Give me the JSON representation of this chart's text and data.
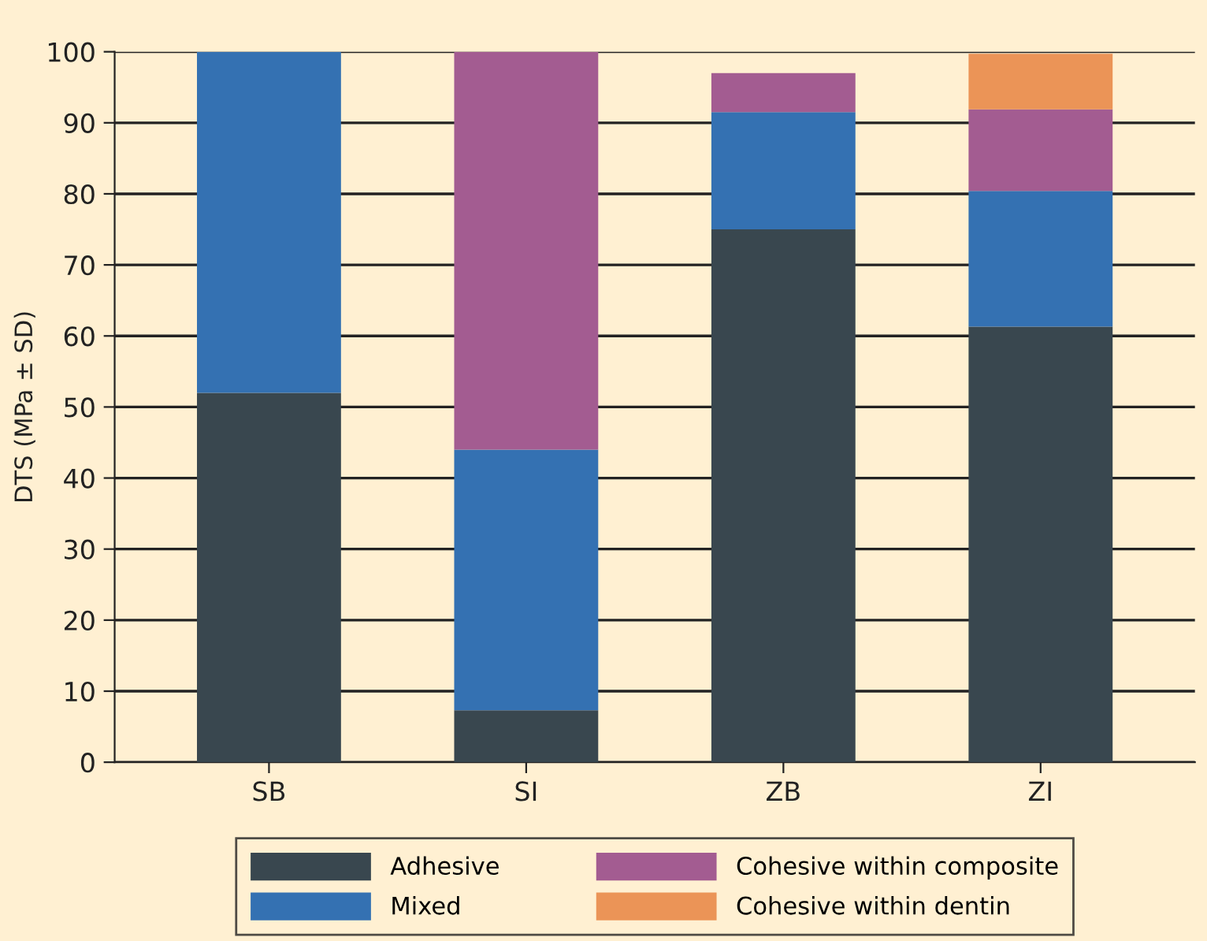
{
  "chart_data": {
    "type": "bar",
    "stacked": true,
    "ylabel": "DTS (MPa ± SD)",
    "categories": [
      "SB",
      "SI",
      "ZB",
      "ZI"
    ],
    "series": [
      {
        "name": "Adhesive",
        "color": "#39474f",
        "values": [
          52,
          7.3,
          75,
          61.3
        ]
      },
      {
        "name": "Mixed",
        "color": "#3471b2",
        "values": [
          48,
          36.7,
          16.5,
          19.1
        ]
      },
      {
        "name": "Cohesive within composite",
        "color": "#a35c91",
        "values": [
          null,
          56,
          5.5,
          11.5
        ]
      },
      {
        "name": "Cohesive within dentin",
        "color": "#eb9457",
        "values": [
          null,
          null,
          null,
          7.8
        ]
      }
    ],
    "ylim": [
      0,
      100
    ],
    "yticks": [
      0,
      10,
      20,
      30,
      40,
      50,
      60,
      70,
      80,
      90,
      100
    ],
    "grid": "y",
    "legend": "bottom"
  }
}
